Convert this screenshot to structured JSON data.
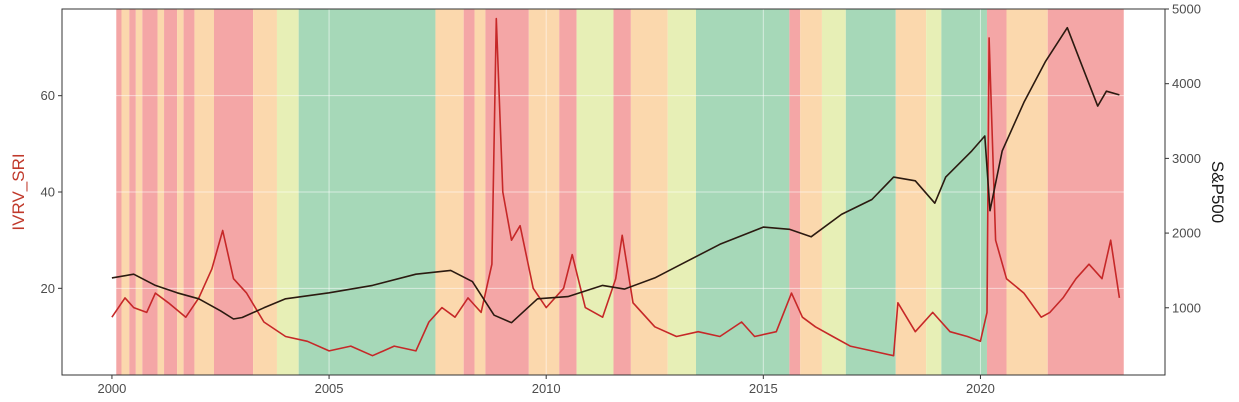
{
  "chart_data": {
    "type": "line",
    "title": "",
    "xlabel": "",
    "ylabel_left": "IVRV_SRI",
    "ylabel_right": "S&P500",
    "x_ticks": [
      "2000",
      "2005",
      "2010",
      "2015",
      "2020"
    ],
    "x_tick_values": [
      2000,
      2005,
      2010,
      2015,
      2020
    ],
    "xlim": [
      1998.85,
      2024.25
    ],
    "y_left_ticks": [
      "20",
      "40",
      "60"
    ],
    "y_left_tick_values": [
      20,
      40,
      60
    ],
    "ylim_left": [
      2,
      78
    ],
    "y_right_ticks": [
      "1000",
      "2000",
      "3000",
      "4000",
      "5000"
    ],
    "y_right_tick_values": [
      1000,
      2000,
      3000,
      4000,
      5000
    ],
    "ylim_right": [
      100,
      5000
    ],
    "grid": true,
    "line_color_ivrv": "#c62828",
    "line_color_spx": "#2b1a10",
    "regime_colors": {
      "red": "#f4a6a6",
      "orange": "#fbd8ad",
      "yellow": "#e7efb6",
      "green": "#a6d8b8"
    },
    "regime_bands": [
      {
        "start": 2000.1,
        "end": 2000.22,
        "regime": "red"
      },
      {
        "start": 2000.22,
        "end": 2000.4,
        "regime": "orange"
      },
      {
        "start": 2000.4,
        "end": 2000.55,
        "regime": "red"
      },
      {
        "start": 2000.55,
        "end": 2000.7,
        "regime": "orange"
      },
      {
        "start": 2000.7,
        "end": 2001.05,
        "regime": "red"
      },
      {
        "start": 2001.05,
        "end": 2001.2,
        "regime": "orange"
      },
      {
        "start": 2001.2,
        "end": 2001.5,
        "regime": "red"
      },
      {
        "start": 2001.5,
        "end": 2001.65,
        "regime": "orange"
      },
      {
        "start": 2001.65,
        "end": 2001.9,
        "regime": "red"
      },
      {
        "start": 2001.9,
        "end": 2002.35,
        "regime": "orange"
      },
      {
        "start": 2002.35,
        "end": 2003.25,
        "regime": "red"
      },
      {
        "start": 2003.25,
        "end": 2003.8,
        "regime": "orange"
      },
      {
        "start": 2003.8,
        "end": 2004.3,
        "regime": "yellow"
      },
      {
        "start": 2004.3,
        "end": 2007.45,
        "regime": "green"
      },
      {
        "start": 2007.45,
        "end": 2008.1,
        "regime": "orange"
      },
      {
        "start": 2008.1,
        "end": 2008.35,
        "regime": "red"
      },
      {
        "start": 2008.35,
        "end": 2008.6,
        "regime": "orange"
      },
      {
        "start": 2008.6,
        "end": 2009.6,
        "regime": "red"
      },
      {
        "start": 2009.6,
        "end": 2010.3,
        "regime": "orange"
      },
      {
        "start": 2010.3,
        "end": 2010.7,
        "regime": "red"
      },
      {
        "start": 2010.7,
        "end": 2011.55,
        "regime": "yellow"
      },
      {
        "start": 2011.55,
        "end": 2011.95,
        "regime": "red"
      },
      {
        "start": 2011.95,
        "end": 2012.8,
        "regime": "orange"
      },
      {
        "start": 2012.8,
        "end": 2013.45,
        "regime": "yellow"
      },
      {
        "start": 2013.45,
        "end": 2015.6,
        "regime": "green"
      },
      {
        "start": 2015.6,
        "end": 2015.85,
        "regime": "red"
      },
      {
        "start": 2015.85,
        "end": 2016.35,
        "regime": "orange"
      },
      {
        "start": 2016.35,
        "end": 2016.9,
        "regime": "yellow"
      },
      {
        "start": 2016.9,
        "end": 2018.05,
        "regime": "green"
      },
      {
        "start": 2018.05,
        "end": 2018.75,
        "regime": "orange"
      },
      {
        "start": 2018.75,
        "end": 2019.1,
        "regime": "yellow"
      },
      {
        "start": 2019.1,
        "end": 2020.15,
        "regime": "green"
      },
      {
        "start": 2020.15,
        "end": 2020.6,
        "regime": "red"
      },
      {
        "start": 2020.6,
        "end": 2021.55,
        "regime": "orange"
      },
      {
        "start": 2021.55,
        "end": 2023.3,
        "regime": "red"
      }
    ],
    "series": [
      {
        "name": "IVRV_SRI",
        "axis": "left",
        "x": [
          2000.0,
          2000.3,
          2000.5,
          2000.8,
          2001.0,
          2001.3,
          2001.7,
          2002.0,
          2002.3,
          2002.55,
          2002.8,
          2003.1,
          2003.5,
          2004.0,
          2004.5,
          2005.0,
          2005.5,
          2006.0,
          2006.5,
          2007.0,
          2007.3,
          2007.6,
          2007.9,
          2008.2,
          2008.5,
          2008.75,
          2008.85,
          2009.0,
          2009.2,
          2009.4,
          2009.7,
          2010.0,
          2010.4,
          2010.6,
          2010.9,
          2011.3,
          2011.6,
          2011.75,
          2012.0,
          2012.5,
          2013.0,
          2013.5,
          2014.0,
          2014.5,
          2014.8,
          2015.3,
          2015.65,
          2015.9,
          2016.2,
          2016.6,
          2017.0,
          2017.5,
          2018.0,
          2018.1,
          2018.5,
          2018.9,
          2019.3,
          2019.7,
          2020.0,
          2020.15,
          2020.2,
          2020.35,
          2020.6,
          2021.0,
          2021.4,
          2021.6,
          2021.9,
          2022.2,
          2022.5,
          2022.8,
          2023.0,
          2023.2
        ],
        "y": [
          14,
          18,
          16,
          15,
          19,
          17,
          14,
          18,
          24,
          32,
          22,
          19,
          13,
          10,
          9,
          7,
          8,
          6,
          8,
          7,
          13,
          16,
          14,
          18,
          15,
          25,
          76,
          40,
          30,
          33,
          20,
          16,
          20,
          27,
          16,
          14,
          22,
          31,
          17,
          12,
          10,
          11,
          10,
          13,
          10,
          11,
          19,
          14,
          12,
          10,
          8,
          7,
          6,
          17,
          11,
          15,
          11,
          10,
          9,
          15,
          72,
          30,
          22,
          19,
          14,
          15,
          18,
          22,
          25,
          22,
          30,
          18
        ]
      },
      {
        "name": "S&P500",
        "axis": "right",
        "x": [
          2000.0,
          2000.5,
          2001.0,
          2001.5,
          2002.0,
          2002.5,
          2002.8,
          2003.0,
          2003.5,
          2004.0,
          2005.0,
          2006.0,
          2007.0,
          2007.8,
          2008.3,
          2008.8,
          2009.2,
          2009.8,
          2010.5,
          2011.3,
          2011.8,
          2012.5,
          2013.0,
          2014.0,
          2015.0,
          2015.6,
          2016.1,
          2016.8,
          2017.5,
          2018.0,
          2018.5,
          2018.95,
          2019.2,
          2019.8,
          2020.1,
          2020.22,
          2020.5,
          2021.0,
          2021.5,
          2022.0,
          2022.3,
          2022.7,
          2022.9,
          2023.2
        ],
        "y": [
          1400,
          1450,
          1300,
          1200,
          1120,
          960,
          850,
          870,
          1000,
          1120,
          1200,
          1300,
          1450,
          1500,
          1350,
          900,
          800,
          1120,
          1150,
          1300,
          1250,
          1400,
          1550,
          1850,
          2080,
          2050,
          1950,
          2250,
          2450,
          2750,
          2700,
          2400,
          2750,
          3100,
          3300,
          2300,
          3100,
          3750,
          4300,
          4750,
          4300,
          3700,
          3900,
          3850
        ]
      }
    ]
  }
}
